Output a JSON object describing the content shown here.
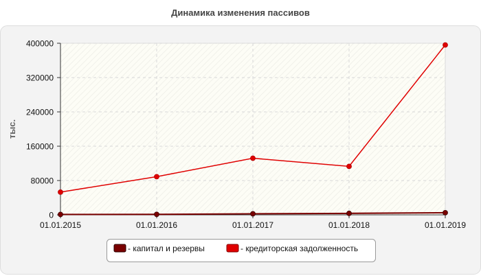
{
  "chart_data": {
    "type": "line",
    "title": "Динамика изменения пассивов",
    "ylabel": "тыс.",
    "xlabel": "",
    "categories": [
      "01.01.2015",
      "01.01.2016",
      "01.01.2017",
      "01.01.2018",
      "01.01.2019"
    ],
    "ylim": [
      0,
      400000
    ],
    "yticks": [
      "0",
      "80000",
      "160000",
      "240000",
      "320000",
      "400000"
    ],
    "yticks_values": [
      0,
      80000,
      160000,
      240000,
      320000,
      400000
    ],
    "grid": true,
    "legend_position": "bottom",
    "series": [
      {
        "name": "- капитал и резервы",
        "color": "#7a0000",
        "values": [
          1000,
          1200,
          2500,
          3500,
          5000
        ]
      },
      {
        "name": "- кредиторская задолженность",
        "color": "#e00000",
        "values": [
          53000,
          89000,
          132000,
          113000,
          396000
        ]
      }
    ]
  }
}
